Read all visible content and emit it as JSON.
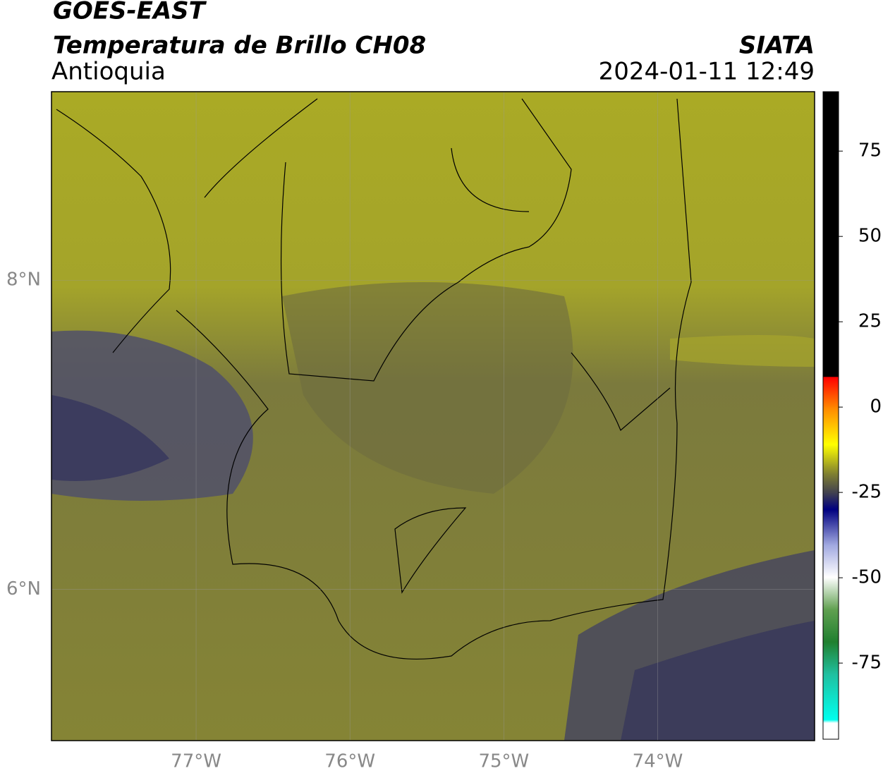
{
  "header": {
    "line1": "GOES-EAST",
    "line2": "Temperatura de Brillo CH08",
    "region": "Antioquia",
    "source": "SIATA",
    "datetime": "2024-01-11 12:49"
  },
  "map": {
    "lonlim": [
      -77.94,
      -72.98
    ],
    "latlim": [
      5.02,
      9.22
    ],
    "lon_ticks": [
      {
        "value": -77,
        "label": "77°W"
      },
      {
        "value": -76,
        "label": "76°W"
      },
      {
        "value": -75,
        "label": "75°W"
      },
      {
        "value": -74,
        "label": "74°W"
      }
    ],
    "lat_ticks": [
      {
        "value": 8,
        "label": "8°N"
      },
      {
        "value": 6,
        "label": "6°N"
      }
    ]
  },
  "colorbar": {
    "lim": [
      -97.3,
      92.4
    ],
    "ticks": [
      75,
      50,
      25,
      0,
      -25,
      -50,
      -75
    ]
  }
}
